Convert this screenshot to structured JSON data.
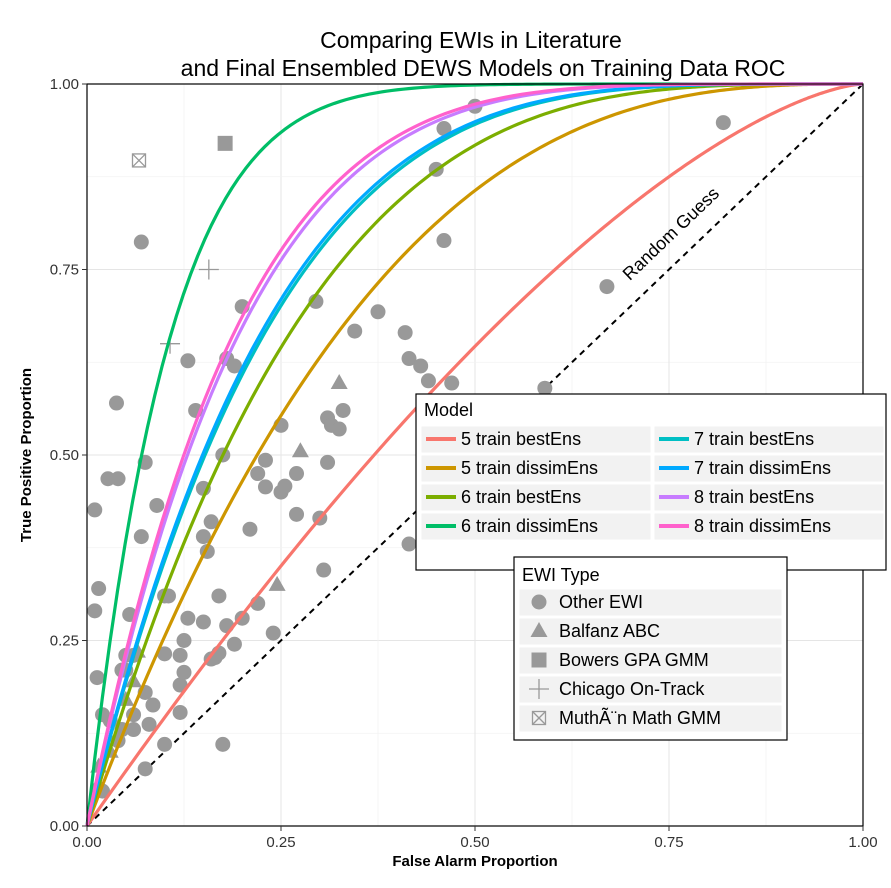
{
  "chart_data": {
    "type": "scatter",
    "title_lines": [
      "Comparing EWIs in Literature",
      "and Final Ensembled DEWS Models on Training Data ROC"
    ],
    "xlabel": "False Alarm Proportion",
    "ylabel": "True Positive Proportion",
    "xlim": [
      0,
      1
    ],
    "ylim": [
      0,
      1
    ],
    "x_ticks": [
      "0.00",
      "0.25",
      "0.50",
      "0.75",
      "1.00"
    ],
    "y_ticks": [
      "0.00",
      "0.25",
      "0.50",
      "0.75",
      "1.00"
    ],
    "grid": true,
    "annotation": "Random Guess",
    "model_legend": {
      "title": "Model",
      "position": "right-middle"
    },
    "ewi_legend": {
      "title": "EWI Type",
      "position": "bottom-right",
      "entries": [
        {
          "label": "Other EWI",
          "shape": "circle"
        },
        {
          "label": "Balfanz ABC",
          "shape": "triangle"
        },
        {
          "label": "Bowers GPA GMM",
          "shape": "square"
        },
        {
          "label": "Chicago On-Track",
          "shape": "plus"
        },
        {
          "label": "MuthÃ¨n Math GMM",
          "shape": "boxed-x"
        }
      ]
    },
    "series": [
      {
        "name": "5 train bestEns",
        "color": "#f8766d",
        "k": 1.5
      },
      {
        "name": "5 train dissimEns",
        "color": "#cd9600",
        "k": 2.8
      },
      {
        "name": "6 train bestEns",
        "color": "#7cae00",
        "k": 3.6
      },
      {
        "name": "6 train dissimEns",
        "color": "#00be67",
        "k": 9.5
      },
      {
        "name": "7 train bestEns",
        "color": "#00bfc4",
        "k": 4.2
      },
      {
        "name": "7 train dissimEns",
        "color": "#00a9ff",
        "k": 4.3
      },
      {
        "name": "8 train bestEns",
        "color": "#c77cff",
        "k": 5.0
      },
      {
        "name": "8 train dissimEns",
        "color": "#ff61cc",
        "k": 5.2
      }
    ],
    "points": {
      "other": [
        [
          0.07,
          0.787
        ],
        [
          0.038,
          0.57
        ],
        [
          0.027,
          0.468
        ],
        [
          0.01,
          0.426
        ],
        [
          0.04,
          0.468
        ],
        [
          0.09,
          0.432
        ],
        [
          0.075,
          0.49
        ],
        [
          0.07,
          0.39
        ],
        [
          0.1,
          0.31
        ],
        [
          0.105,
          0.31
        ],
        [
          0.13,
          0.627
        ],
        [
          0.14,
          0.56
        ],
        [
          0.15,
          0.455
        ],
        [
          0.15,
          0.39
        ],
        [
          0.155,
          0.37
        ],
        [
          0.16,
          0.41
        ],
        [
          0.13,
          0.28
        ],
        [
          0.15,
          0.275
        ],
        [
          0.18,
          0.27
        ],
        [
          0.17,
          0.31
        ],
        [
          0.175,
          0.5
        ],
        [
          0.18,
          0.63
        ],
        [
          0.19,
          0.62
        ],
        [
          0.2,
          0.7
        ],
        [
          0.21,
          0.4
        ],
        [
          0.22,
          0.3
        ],
        [
          0.2,
          0.28
        ],
        [
          0.22,
          0.475
        ],
        [
          0.23,
          0.493
        ],
        [
          0.23,
          0.457
        ],
        [
          0.25,
          0.54
        ],
        [
          0.25,
          0.45
        ],
        [
          0.255,
          0.458
        ],
        [
          0.27,
          0.42
        ],
        [
          0.27,
          0.475
        ],
        [
          0.295,
          0.707
        ],
        [
          0.3,
          0.415
        ],
        [
          0.305,
          0.345
        ],
        [
          0.31,
          0.49
        ],
        [
          0.31,
          0.55
        ],
        [
          0.315,
          0.54
        ],
        [
          0.325,
          0.535
        ],
        [
          0.33,
          0.56
        ],
        [
          0.345,
          0.667
        ],
        [
          0.375,
          0.693
        ],
        [
          0.41,
          0.665
        ],
        [
          0.415,
          0.63
        ],
        [
          0.43,
          0.62
        ],
        [
          0.44,
          0.6
        ],
        [
          0.47,
          0.597
        ],
        [
          0.415,
          0.38
        ],
        [
          0.45,
          0.885
        ],
        [
          0.46,
          0.94
        ],
        [
          0.5,
          0.97
        ],
        [
          0.46,
          0.789
        ],
        [
          0.59,
          0.59
        ],
        [
          0.67,
          0.727
        ],
        [
          0.82,
          0.948
        ],
        [
          0.1,
          0.232
        ],
        [
          0.12,
          0.23
        ],
        [
          0.125,
          0.25
        ],
        [
          0.12,
          0.19
        ],
        [
          0.125,
          0.207
        ],
        [
          0.12,
          0.153
        ],
        [
          0.16,
          0.225
        ],
        [
          0.165,
          0.227
        ],
        [
          0.17,
          0.233
        ],
        [
          0.19,
          0.245
        ],
        [
          0.24,
          0.26
        ],
        [
          0.175,
          0.11
        ],
        [
          0.1,
          0.11
        ],
        [
          0.075,
          0.077
        ],
        [
          0.075,
          0.18
        ],
        [
          0.08,
          0.137
        ],
        [
          0.085,
          0.163
        ],
        [
          0.06,
          0.13
        ],
        [
          0.05,
          0.21
        ],
        [
          0.045,
          0.13
        ],
        [
          0.04,
          0.115
        ],
        [
          0.03,
          0.142
        ],
        [
          0.02,
          0.15
        ],
        [
          0.013,
          0.2
        ],
        [
          0.01,
          0.29
        ],
        [
          0.015,
          0.32
        ],
        [
          0.055,
          0.285
        ],
        [
          0.05,
          0.23
        ],
        [
          0.06,
          0.23
        ],
        [
          0.06,
          0.15
        ],
        [
          0.045,
          0.21
        ],
        [
          0.015,
          0.05
        ],
        [
          0.02,
          0.047
        ]
      ],
      "triangle": [
        [
          0.325,
          0.597
        ],
        [
          0.275,
          0.505
        ],
        [
          0.245,
          0.325
        ],
        [
          0.065,
          0.235
        ],
        [
          0.06,
          0.195
        ],
        [
          0.05,
          0.17
        ],
        [
          0.03,
          0.1
        ],
        [
          0.015,
          0.08
        ]
      ],
      "square": [
        [
          0.178,
          0.92
        ]
      ],
      "plus": [
        [
          0.157,
          0.75
        ],
        [
          0.107,
          0.65
        ]
      ],
      "boxed_x": [
        [
          0.067,
          0.897
        ]
      ]
    }
  }
}
